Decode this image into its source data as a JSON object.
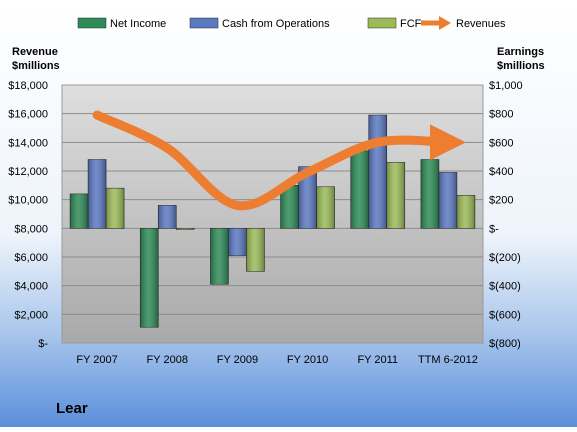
{
  "chart_data": {
    "type": "bar",
    "title": "Lear",
    "categories": [
      "FY 2007",
      "FY 2008",
      "FY 2009",
      "FY 2010",
      "FY 2011",
      "TTM 6-2012"
    ],
    "left_axis": {
      "label_line1": "Revenue",
      "label_line2": "$millions",
      "range": [
        0,
        18000
      ],
      "ticks": [
        0,
        2000,
        4000,
        6000,
        8000,
        10000,
        12000,
        14000,
        16000,
        18000
      ],
      "tick_labels": [
        "$-",
        "$2,000",
        "$4,000",
        "$6,000",
        "$8,000",
        "$10,000",
        "$12,000",
        "$14,000",
        "$16,000",
        "$18,000"
      ]
    },
    "right_axis": {
      "label_line1": "Earnings",
      "label_line2": "$millions",
      "range": [
        -800,
        1000
      ],
      "ticks": [
        -800,
        -600,
        -400,
        -200,
        0,
        200,
        400,
        600,
        800,
        1000
      ],
      "tick_labels": [
        "$(800)",
        "$(600)",
        "$(400)",
        "$(200)",
        "$-",
        "$200",
        "$400",
        "$600",
        "$800",
        "$1,000"
      ]
    },
    "series": [
      {
        "name": "Net Income",
        "axis": "right",
        "kind": "bar",
        "color": "#2e8b57",
        "values": [
          240,
          -690,
          -390,
          300,
          540,
          480
        ]
      },
      {
        "name": "Cash from Operations",
        "axis": "right",
        "kind": "bar",
        "color": "#5b79c2",
        "values": [
          480,
          160,
          -190,
          430,
          790,
          390
        ]
      },
      {
        "name": "FCF",
        "axis": "right",
        "kind": "bar",
        "color": "#9bbb59",
        "values": [
          280,
          -5,
          -300,
          290,
          460,
          230
        ]
      },
      {
        "name": "Revenues",
        "axis": "left",
        "kind": "line",
        "color": "#ed7d31",
        "values": [
          15900,
          13600,
          9600,
          11900,
          14000,
          14000
        ]
      }
    ],
    "legend_position": "top",
    "grid": true
  }
}
